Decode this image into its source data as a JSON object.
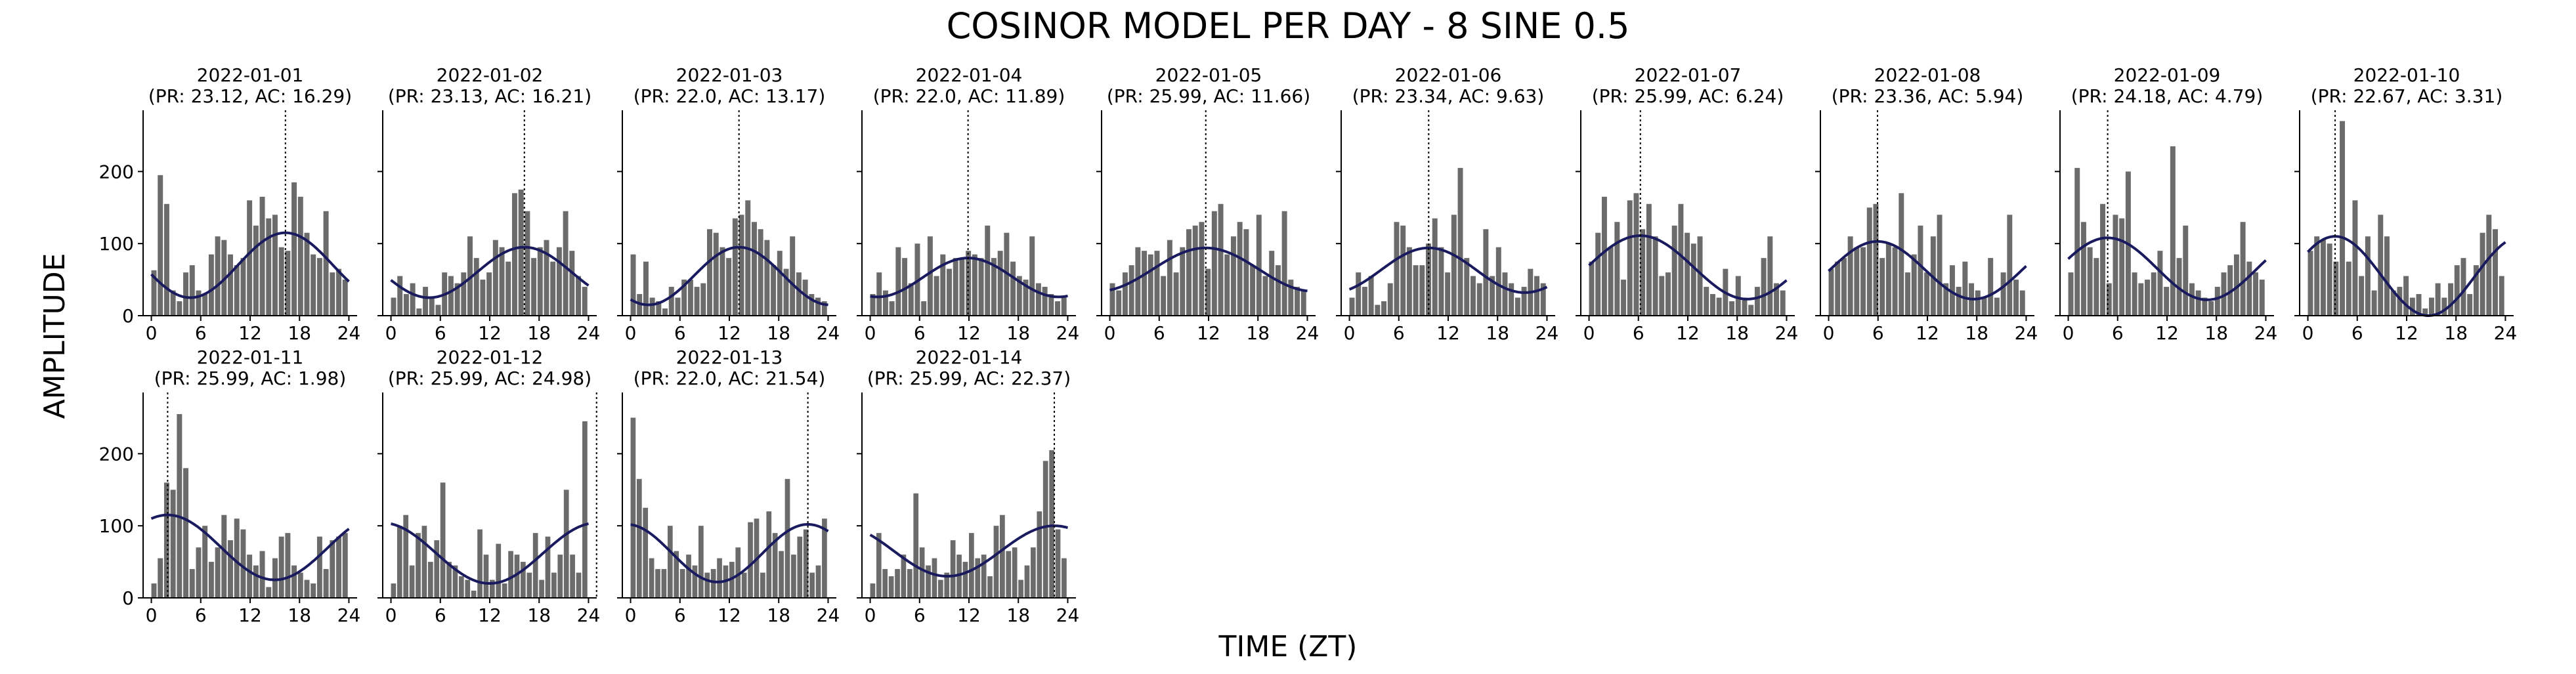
{
  "figure": {
    "title": "COSINOR MODEL PER DAY - 8 SINE 0.5",
    "xlabel": "TIME (ZT)",
    "ylabel": "AMPLITUDE"
  },
  "chart_data": {
    "type": "bar",
    "overlay": "cosinor fit line with vertical dotted acrophase marker",
    "bar_color": "#6b6b6b",
    "fit_color": "#1a1a5e",
    "x_ticks": [
      0,
      6,
      12,
      18,
      24
    ],
    "xlim": [
      -1,
      25
    ],
    "y_ticks": [
      0,
      100,
      200
    ],
    "ylim": [
      0,
      285
    ],
    "grid": false,
    "legend": "none",
    "panels": [
      {
        "date": "2022-01-01",
        "label": "(PR: 23.12, AC: 16.29)",
        "period": 23.12,
        "acrophase": 16.29,
        "mesor": 70,
        "amplitude": 45,
        "bars": [
          63,
          195,
          155,
          35,
          20,
          60,
          70,
          35,
          30,
          85,
          110,
          105,
          85,
          70,
          80,
          160,
          125,
          165,
          135,
          140,
          95,
          90,
          185,
          165,
          115,
          85,
          80,
          145,
          60,
          65,
          50
        ]
      },
      {
        "date": "2022-01-02",
        "label": "(PR: 23.13, AC: 16.21)",
        "period": 23.13,
        "acrophase": 16.21,
        "mesor": 60,
        "amplitude": 35,
        "bars": [
          25,
          55,
          30,
          45,
          10,
          40,
          25,
          15,
          60,
          55,
          45,
          60,
          110,
          80,
          50,
          60,
          105,
          95,
          75,
          170,
          175,
          145,
          80,
          95,
          105,
          75,
          95,
          145,
          90,
          55,
          40
        ]
      },
      {
        "date": "2022-01-03",
        "label": "(PR: 22.0, AC: 13.17)",
        "period": 22.0,
        "acrophase": 13.17,
        "mesor": 55,
        "amplitude": 40,
        "bars": [
          85,
          30,
          75,
          25,
          20,
          10,
          40,
          25,
          50,
          50,
          40,
          45,
          120,
          115,
          95,
          80,
          135,
          140,
          160,
          130,
          120,
          105,
          70,
          90,
          65,
          110,
          60,
          50,
          30,
          25,
          20
        ]
      },
      {
        "date": "2022-01-04",
        "label": "(PR: 22.0, AC: 11.89)",
        "period": 22.0,
        "acrophase": 11.89,
        "mesor": 53,
        "amplitude": 27,
        "bars": [
          30,
          60,
          35,
          20,
          95,
          80,
          45,
          100,
          20,
          110,
          55,
          85,
          65,
          80,
          80,
          90,
          85,
          80,
          125,
          80,
          90,
          115,
          75,
          55,
          50,
          110,
          45,
          40,
          30,
          20,
          25
        ]
      },
      {
        "date": "2022-01-05",
        "label": "(PR: 25.99, AC: 11.66)",
        "period": 25.99,
        "acrophase": 11.66,
        "mesor": 64,
        "amplitude": 30,
        "bars": [
          45,
          35,
          60,
          70,
          95,
          90,
          85,
          90,
          55,
          105,
          60,
          95,
          120,
          125,
          130,
          65,
          145,
          155,
          85,
          110,
          130,
          120,
          70,
          140,
          55,
          90,
          70,
          145,
          50,
          40,
          35
        ]
      },
      {
        "date": "2022-01-06",
        "label": "(PR: 23.34, AC: 9.63)",
        "period": 23.34,
        "acrophase": 9.63,
        "mesor": 63,
        "amplitude": 31,
        "bars": [
          25,
          60,
          40,
          55,
          15,
          20,
          45,
          130,
          125,
          95,
          70,
          70,
          100,
          135,
          95,
          60,
          140,
          205,
          80,
          55,
          45,
          120,
          55,
          95,
          60,
          45,
          25,
          40,
          65,
          55,
          45
        ]
      },
      {
        "date": "2022-01-07",
        "label": "(PR: 25.99, AC: 6.24)",
        "period": 25.99,
        "acrophase": 6.24,
        "mesor": 67,
        "amplitude": 44,
        "bars": [
          75,
          115,
          165,
          95,
          130,
          50,
          160,
          170,
          120,
          155,
          110,
          55,
          60,
          125,
          155,
          115,
          100,
          110,
          40,
          30,
          25,
          65,
          20,
          55,
          25,
          15,
          40,
          80,
          110,
          45,
          35
        ]
      },
      {
        "date": "2022-01-08",
        "label": "(PR: 23.36, AC: 5.94)",
        "period": 23.36,
        "acrophase": 5.94,
        "mesor": 63,
        "amplitude": 40,
        "bars": [
          65,
          75,
          80,
          110,
          95,
          95,
          150,
          155,
          80,
          100,
          95,
          170,
          60,
          85,
          125,
          60,
          110,
          140,
          45,
          70,
          40,
          75,
          45,
          35,
          25,
          80,
          25,
          60,
          140,
          50,
          35
        ]
      },
      {
        "date": "2022-01-09",
        "label": "(PR: 24.18, AC: 4.79)",
        "period": 24.18,
        "acrophase": 4.79,
        "mesor": 65,
        "amplitude": 43,
        "bars": [
          60,
          205,
          130,
          95,
          80,
          155,
          45,
          140,
          135,
          200,
          60,
          45,
          50,
          60,
          90,
          40,
          235,
          80,
          125,
          45,
          35,
          25,
          20,
          40,
          60,
          70,
          85,
          130,
          75,
          60,
          50
        ]
      },
      {
        "date": "2022-01-10",
        "label": "(PR: 22.67, AC: 3.31)",
        "period": 22.67,
        "acrophase": 3.31,
        "mesor": 55,
        "amplitude": 55,
        "bars": [
          90,
          110,
          105,
          100,
          75,
          270,
          75,
          160,
          55,
          110,
          35,
          140,
          110,
          35,
          40,
          55,
          25,
          30,
          10,
          25,
          45,
          25,
          45,
          70,
          80,
          30,
          70,
          115,
          140,
          120,
          55
        ]
      },
      {
        "date": "2022-01-11",
        "label": "(PR: 25.99, AC: 1.98)",
        "period": 25.99,
        "acrophase": 1.98,
        "mesor": 70,
        "amplitude": 45,
        "bars": [
          20,
          55,
          160,
          150,
          255,
          180,
          40,
          70,
          100,
          50,
          70,
          115,
          80,
          110,
          95,
          60,
          45,
          65,
          15,
          55,
          85,
          90,
          45,
          35,
          25,
          20,
          85,
          40,
          80,
          85,
          90
        ]
      },
      {
        "date": "2022-01-12",
        "label": "(PR: 25.99, AC: 24.98)",
        "period": 25.99,
        "acrophase": 24.98,
        "mesor": 62,
        "amplitude": 42,
        "bars": [
          20,
          100,
          115,
          45,
          90,
          100,
          50,
          80,
          160,
          50,
          45,
          30,
          25,
          10,
          95,
          60,
          25,
          75,
          20,
          65,
          60,
          50,
          35,
          90,
          25,
          85,
          35,
          60,
          150,
          60,
          35,
          245
        ]
      },
      {
        "date": "2022-01-13",
        "label": "(PR: 22.0, AC: 21.54)",
        "period": 22.0,
        "acrophase": 21.54,
        "mesor": 62,
        "amplitude": 40,
        "bars": [
          250,
          165,
          125,
          55,
          40,
          40,
          100,
          65,
          40,
          60,
          45,
          100,
          35,
          40,
          55,
          45,
          50,
          70,
          35,
          105,
          110,
          35,
          120,
          90,
          65,
          165,
          60,
          85,
          95,
          35,
          45,
          110
        ]
      },
      {
        "date": "2022-01-14",
        "label": "(PR: 25.99, AC: 22.37)",
        "period": 25.99,
        "acrophase": 22.37,
        "mesor": 65,
        "amplitude": 35,
        "bars": [
          20,
          90,
          40,
          30,
          40,
          60,
          40,
          145,
          70,
          45,
          55,
          25,
          35,
          80,
          60,
          50,
          90,
          55,
          60,
          30,
          100,
          115,
          65,
          70,
          25,
          45,
          70,
          120,
          190,
          205,
          95,
          55
        ]
      }
    ]
  }
}
